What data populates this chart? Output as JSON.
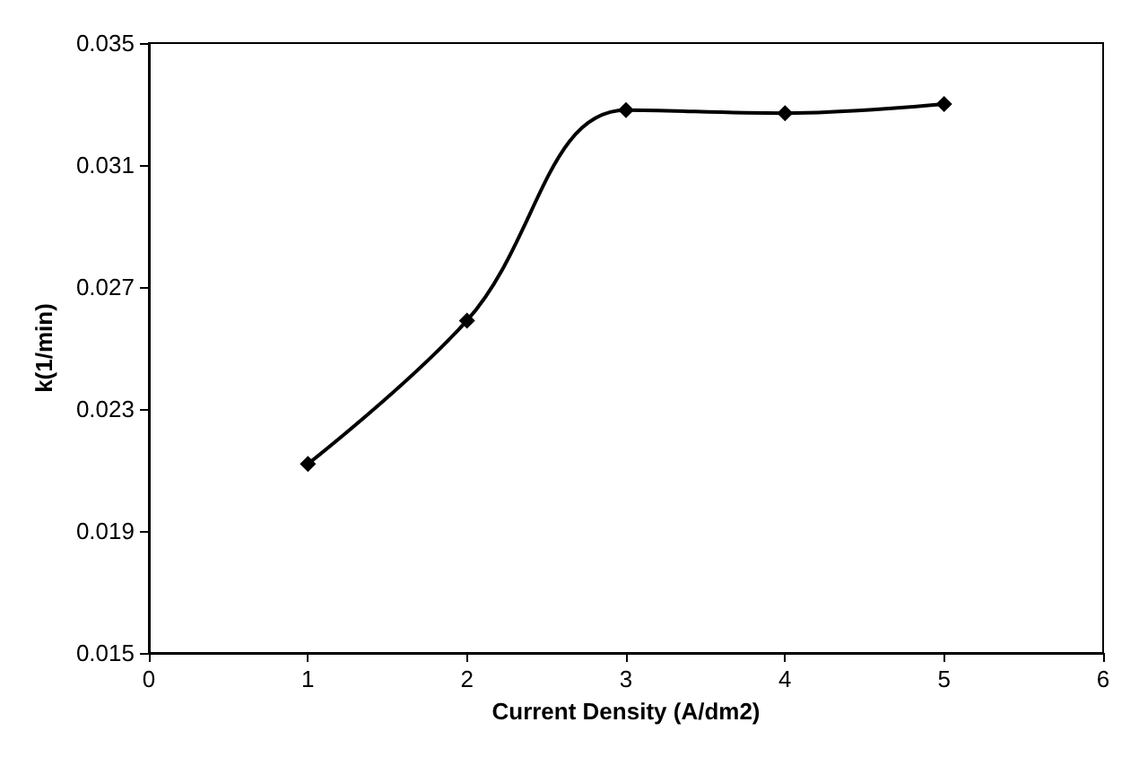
{
  "chart_data": {
    "type": "line",
    "xlabel": "Current Density (A/dm2)",
    "ylabel": "k(1/min)",
    "x": [
      1,
      2,
      3,
      4,
      5
    ],
    "series": [
      {
        "color": "#000000",
        "values": [
          0.0212,
          0.0259,
          0.0328,
          0.0327,
          0.033
        ]
      }
    ],
    "xlim": [
      0,
      6
    ],
    "xticks": [
      0,
      1,
      2,
      3,
      4,
      5,
      6
    ],
    "ylim": [
      0.015,
      0.035
    ],
    "yticks": [
      0.015,
      0.019,
      0.023,
      0.027,
      0.031,
      0.035
    ],
    "grid": false,
    "marker": "diamond",
    "line_style": "solid"
  }
}
